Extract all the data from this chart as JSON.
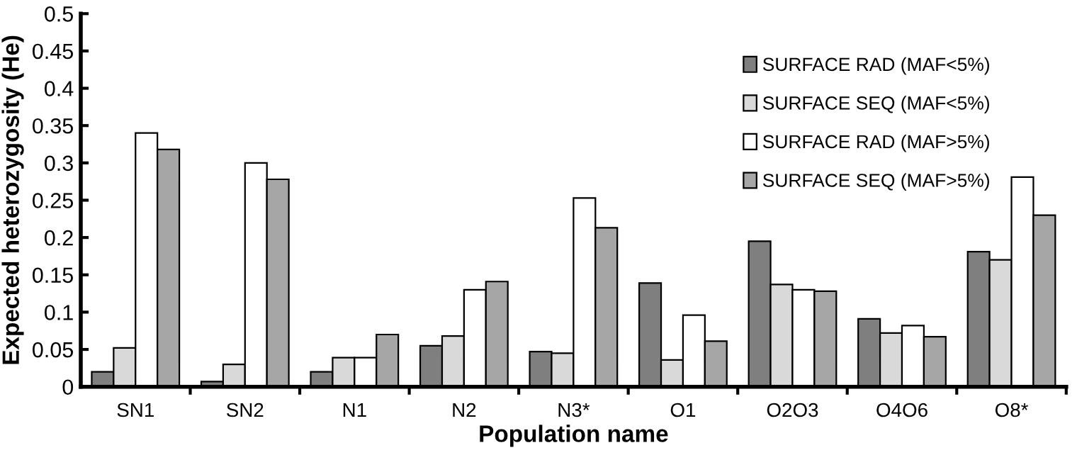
{
  "chart_data": {
    "type": "bar",
    "xlabel": "Population name",
    "ylabel": "Expected heterozygosity (He)",
    "categories": [
      "SN1",
      "SN2",
      "N1",
      "N2",
      "N3*",
      "O1",
      "O2O3",
      "O4O6",
      "O8*"
    ],
    "series": [
      {
        "name": "SURFACE RAD (MAF<5%)",
        "color": "#7f7f7f",
        "values": [
          0.02,
          0.007,
          0.02,
          0.055,
          0.047,
          0.139,
          0.195,
          0.091,
          0.181
        ]
      },
      {
        "name": "SURFACE SEQ (MAF<5%)",
        "color": "#d9d9d9",
        "values": [
          0.052,
          0.03,
          0.039,
          0.068,
          0.045,
          0.036,
          0.137,
          0.072,
          0.17
        ]
      },
      {
        "name": "SURFACE RAD (MAF>5%)",
        "color": "#ffffff",
        "values": [
          0.34,
          0.3,
          0.039,
          0.13,
          0.253,
          0.096,
          0.13,
          0.082,
          0.281
        ]
      },
      {
        "name": "SURFACE SEQ (MAF>5%)",
        "color": "#a6a6a6",
        "values": [
          0.318,
          0.278,
          0.07,
          0.141,
          0.213,
          0.061,
          0.128,
          0.067,
          0.23
        ]
      }
    ],
    "ylim": [
      0,
      0.5
    ],
    "yticks": [
      0,
      0.05,
      0.1,
      0.15,
      0.2,
      0.25,
      0.3,
      0.35,
      0.4,
      0.45,
      0.5
    ],
    "grid": false,
    "legend": "top right"
  }
}
